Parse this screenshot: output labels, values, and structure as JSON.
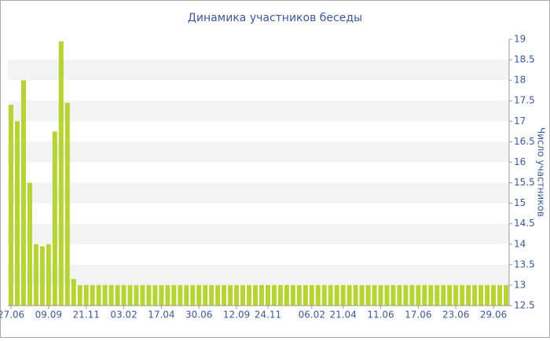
{
  "chart_data": {
    "type": "bar",
    "title": "Динамика участников беседы",
    "y_axis_label": "Число участников",
    "categories": [
      "27.06",
      null,
      null,
      null,
      null,
      null,
      "09.09",
      null,
      null,
      null,
      null,
      null,
      "21.11",
      null,
      null,
      null,
      null,
      null,
      "03.02",
      null,
      null,
      null,
      null,
      null,
      "17.04",
      null,
      null,
      null,
      null,
      null,
      "30.06",
      null,
      null,
      null,
      null,
      null,
      "12.09",
      null,
      null,
      null,
      null,
      "24.11",
      null,
      null,
      null,
      null,
      null,
      null,
      "06.02",
      null,
      null,
      null,
      null,
      "21.04",
      null,
      null,
      null,
      null,
      null,
      "11.06",
      null,
      null,
      null,
      null,
      null,
      "17.06",
      null,
      null,
      null,
      null,
      null,
      "23.06",
      null,
      null,
      null,
      null,
      null,
      "29.06",
      null,
      null
    ],
    "values": [
      17.4,
      17.0,
      18.0,
      15.5,
      14.0,
      13.95,
      14.0,
      16.75,
      18.95,
      17.45,
      13.15,
      13,
      13,
      13,
      13,
      13,
      13,
      13,
      13,
      13,
      13,
      13,
      13,
      13,
      13,
      13,
      13,
      13,
      13,
      13,
      13,
      13,
      13,
      13,
      13,
      13,
      13,
      13,
      13,
      13,
      13,
      13,
      13,
      13,
      13,
      13,
      13,
      13,
      13,
      13,
      13,
      13,
      13,
      13,
      13,
      13,
      13,
      13,
      13,
      13,
      13,
      13,
      13,
      13,
      13,
      13,
      13,
      13,
      13,
      13,
      13,
      13,
      13,
      13,
      13,
      13,
      13,
      13,
      13,
      13
    ],
    "color": "#b7d334",
    "ylim": [
      12.5,
      19
    ],
    "yticks": [
      12.5,
      13,
      13.5,
      14,
      14.5,
      15,
      15.5,
      16,
      16.5,
      17,
      17.5,
      18,
      18.5,
      19
    ],
    "grid": "bands",
    "y_axis_side": "right"
  }
}
